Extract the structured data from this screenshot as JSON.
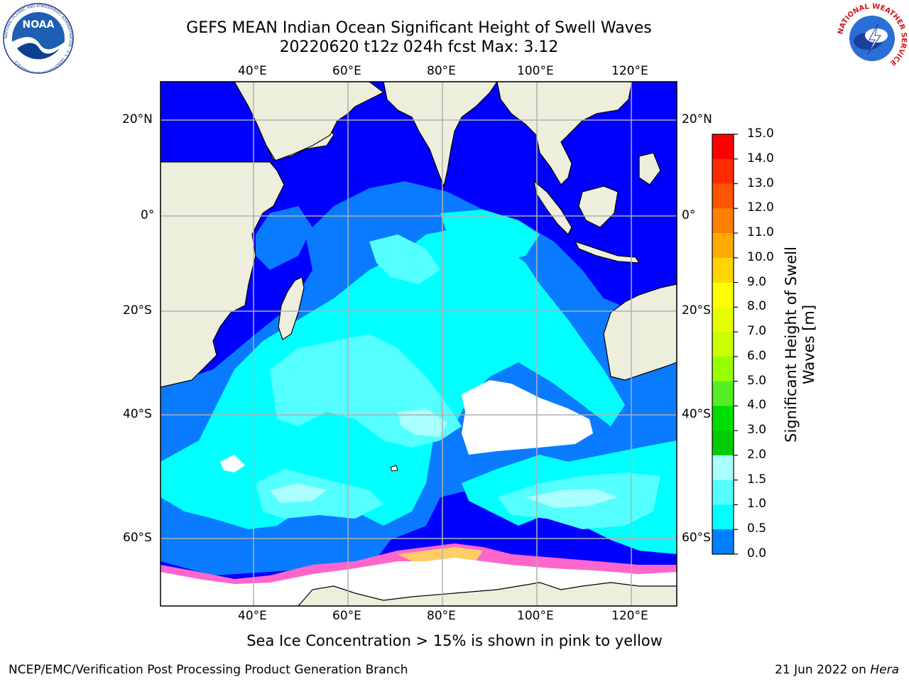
{
  "title_line1": "GEFS MEAN Indian Ocean Significant Height of Swell Waves",
  "title_line2": "20220620 t12z 024h fcst   Max: 3.12",
  "map": {
    "lon_ticks_top": [
      "40°E",
      "60°E",
      "80°E",
      "100°E",
      "120°E"
    ],
    "lon_ticks_bottom": [
      "40°E",
      "60°E",
      "80°E",
      "100°E",
      "120°E"
    ],
    "lat_ticks_left": [
      "20°N",
      "0°",
      "20°S",
      "40°S",
      "60°S"
    ],
    "lat_ticks_right": [
      "20°N",
      "0°",
      "20°S",
      "40°S",
      "60°S"
    ],
    "land_color": "#eeeedd",
    "grid_color": "#b0b0b0"
  },
  "colorbar": {
    "title": "Significant Height of Swell Waves [m]",
    "labels": [
      "15.0",
      "14.0",
      "13.0",
      "12.0",
      "11.0",
      "10.0",
      "9.0",
      "8.0",
      "7.0",
      "6.0",
      "5.0",
      "4.0",
      "3.0",
      "2.0",
      "1.5",
      "1.0",
      "0.5",
      "0.0"
    ],
    "colors": [
      "#ff0000",
      "#ff2a00",
      "#ff5500",
      "#ff7f00",
      "#ffaa00",
      "#ffd400",
      "#ffff00",
      "#e6ff00",
      "#ccff00",
      "#99ff00",
      "#55ee22",
      "#00dd00",
      "#00cc00",
      "#55ff77",
      "#aaffff",
      "#55ffff",
      "#00ffff",
      "#0080ff",
      "#0000ff"
    ]
  },
  "caption": "Sea Ice Concentration > 15% is shown in pink to yellow",
  "footer_left": "NCEP/EMC/Verification Post Processing Product Generation Branch",
  "footer_right_date": "21 Jun 2022 on ",
  "footer_right_host": "Hera",
  "logos": {
    "noaa_text": "NOAA",
    "noaa_ring_text": "NATIONAL OCEANIC AND ATMOSPHERIC ADMINISTRATION · U.S. DEPARTMENT OF COMMERCE",
    "nws_ring_text": "NATIONAL WEATHER SERVICE"
  }
}
